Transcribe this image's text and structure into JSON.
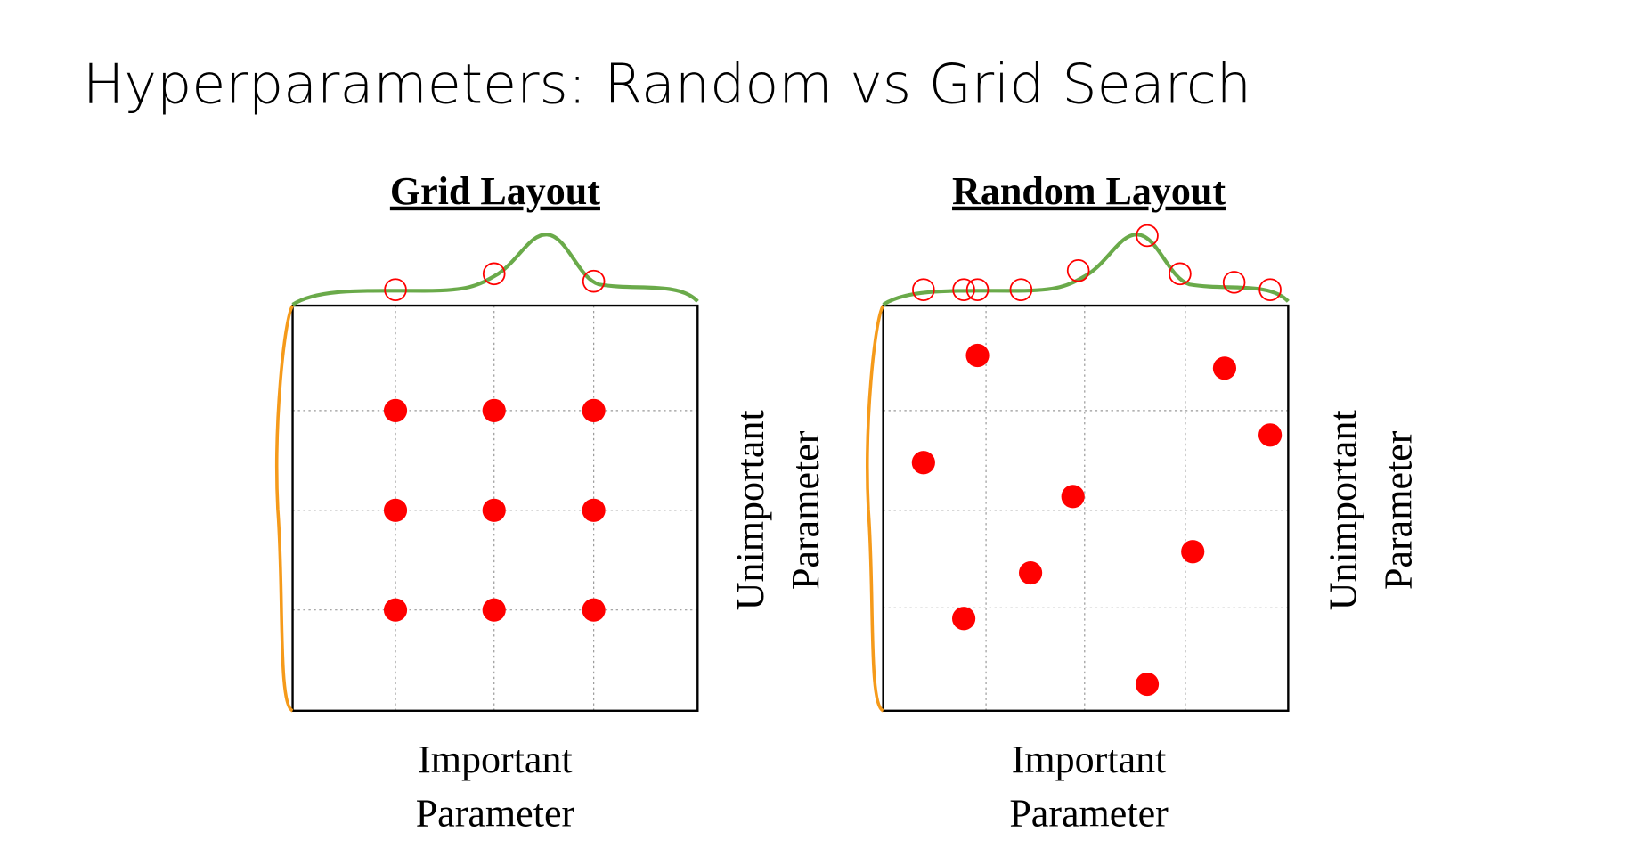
{
  "title": "Hyperparameters: Random vs Grid Search",
  "panels": [
    {
      "title": "Grid Layout",
      "x_label": [
        "Important",
        "Parameter"
      ],
      "y_label": [
        "Unimportant",
        "Parameter"
      ]
    },
    {
      "title": "Random Layout",
      "x_label": [
        "Important",
        "Parameter"
      ],
      "y_label": [
        "Unimportant",
        "Parameter"
      ]
    }
  ]
}
